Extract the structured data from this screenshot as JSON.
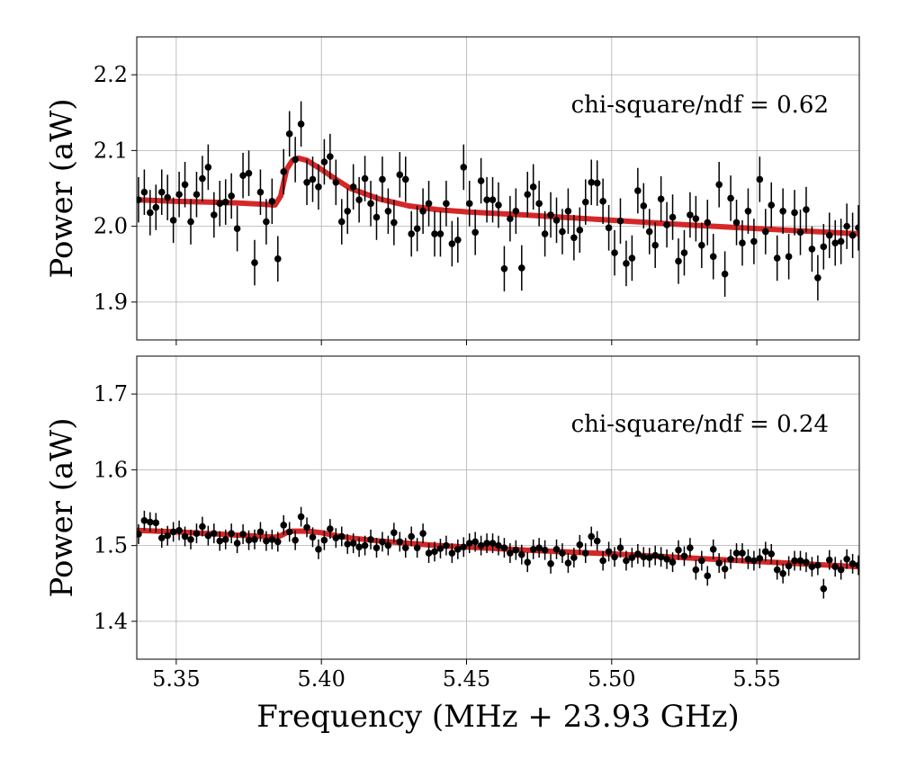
{
  "chart_data": [
    {
      "type": "scatter",
      "annotation": "chi-square/ndf = 0.62",
      "ylabel": "Power (aW)",
      "x": [
        5.337,
        5.339,
        5.341,
        5.343,
        5.345,
        5.347,
        5.349,
        5.351,
        5.353,
        5.355,
        5.357,
        5.359,
        5.361,
        5.363,
        5.365,
        5.367,
        5.369,
        5.371,
        5.373,
        5.375,
        5.377,
        5.379,
        5.381,
        5.383,
        5.385,
        5.387,
        5.389,
        5.391,
        5.393,
        5.395,
        5.397,
        5.399,
        5.401,
        5.403,
        5.405,
        5.407,
        5.409,
        5.411,
        5.413,
        5.415,
        5.417,
        5.419,
        5.421,
        5.423,
        5.425,
        5.427,
        5.429,
        5.431,
        5.433,
        5.435,
        5.437,
        5.439,
        5.441,
        5.443,
        5.445,
        5.447,
        5.449,
        5.451,
        5.453,
        5.455,
        5.457,
        5.459,
        5.461,
        5.463,
        5.465,
        5.467,
        5.469,
        5.471,
        5.473,
        5.475,
        5.477,
        5.479,
        5.481,
        5.483,
        5.485,
        5.487,
        5.489,
        5.491,
        5.493,
        5.495,
        5.497,
        5.499,
        5.501,
        5.503,
        5.505,
        5.507,
        5.509,
        5.511,
        5.513,
        5.515,
        5.517,
        5.519,
        5.521,
        5.523,
        5.525,
        5.527,
        5.529,
        5.531,
        5.533,
        5.535,
        5.537,
        5.539,
        5.541,
        5.543,
        5.545,
        5.547,
        5.549,
        5.551,
        5.553,
        5.555,
        5.557,
        5.559,
        5.561,
        5.563,
        5.565,
        5.567,
        5.569,
        5.571,
        5.573,
        5.575,
        5.577,
        5.579,
        5.581,
        5.583,
        5.585
      ],
      "values": [
        2.035,
        2.045,
        2.018,
        2.025,
        2.045,
        2.038,
        2.008,
        2.042,
        2.055,
        2.006,
        2.042,
        2.063,
        2.078,
        2.015,
        2.03,
        2.032,
        2.04,
        1.997,
        2.067,
        2.07,
        1.952,
        2.045,
        2.006,
        2.033,
        1.957,
        2.072,
        2.122,
        2.088,
        2.135,
        2.058,
        2.062,
        2.052,
        2.085,
        2.092,
        2.058,
        2.006,
        2.02,
        2.052,
        2.035,
        2.063,
        2.03,
        2.012,
        2.062,
        2.02,
        2.005,
        2.068,
        2.062,
        1.99,
        1.997,
        2.02,
        2.03,
        1.99,
        1.99,
        2.03,
        1.977,
        1.982,
        2.078,
        2.03,
        1.992,
        2.06,
        2.035,
        2.035,
        2.028,
        1.944,
        2.01,
        2.02,
        1.945,
        2.042,
        2.052,
        2.03,
        1.99,
        2.015,
        2.008,
        1.993,
        2.02,
        1.985,
        1.995,
        2.032,
        2.058,
        2.057,
        2.033,
        1.998,
        1.965,
        2.007,
        1.951,
        1.958,
        2.047,
        2.027,
        1.993,
        1.975,
        2.036,
        2.002,
        2.012,
        1.954,
        1.965,
        2.015,
        2.01,
        1.975,
        2.005,
        1.96,
        2.055,
        1.937,
        2.037,
        2.005,
        1.978,
        2.02,
        1.98,
        2.062,
        1.993,
        2.028,
        1.958,
        2.02,
        1.96,
        2.018,
        1.992,
        2.022,
        1.97,
        1.932,
        1.973,
        1.988,
        1.978,
        1.98,
        2.0,
        1.988,
        1.998
      ],
      "yerr": 0.03,
      "color": "#000000",
      "fit": {
        "color": "#d62728",
        "x": [
          5.3364,
          5.35,
          5.36,
          5.37,
          5.38,
          5.384,
          5.386,
          5.388,
          5.39,
          5.392,
          5.395,
          5.4,
          5.405,
          5.41,
          5.42,
          5.43,
          5.44,
          5.45,
          5.47,
          5.5,
          5.53,
          5.56,
          5.5853
        ],
        "values": [
          2.035,
          2.033,
          2.032,
          2.031,
          2.029,
          2.028,
          2.04,
          2.075,
          2.087,
          2.09,
          2.087,
          2.075,
          2.062,
          2.05,
          2.036,
          2.027,
          2.022,
          2.019,
          2.015,
          2.008,
          2.001,
          1.995,
          1.99
        ]
      },
      "xlim": [
        5.3364,
        5.5853
      ],
      "xticks": [
        5.35,
        {
          "value": 5.4,
          "label": "5.40"
        },
        5.45,
        {
          "value": 5.5,
          "label": "5.50"
        },
        5.55
      ],
      "xtick_labels": false,
      "ylim": [
        1.85,
        2.25
      ],
      "yticks": [
        1.9,
        {
          "value": 2.0,
          "label": "2.0"
        },
        2.1,
        2.2
      ],
      "grid": true
    },
    {
      "type": "scatter",
      "annotation": "chi-square/ndf = 0.24",
      "ylabel": "Power (aW)",
      "xlabel": "Frequency (MHz + 23.93 GHz)",
      "x": [
        5.337,
        5.339,
        5.341,
        5.343,
        5.345,
        5.347,
        5.349,
        5.351,
        5.353,
        5.355,
        5.357,
        5.359,
        5.361,
        5.363,
        5.365,
        5.367,
        5.369,
        5.371,
        5.373,
        5.375,
        5.377,
        5.379,
        5.381,
        5.383,
        5.385,
        5.387,
        5.389,
        5.391,
        5.393,
        5.395,
        5.397,
        5.399,
        5.401,
        5.403,
        5.405,
        5.407,
        5.409,
        5.411,
        5.413,
        5.415,
        5.417,
        5.419,
        5.421,
        5.423,
        5.425,
        5.427,
        5.429,
        5.431,
        5.433,
        5.435,
        5.437,
        5.439,
        5.441,
        5.443,
        5.445,
        5.447,
        5.449,
        5.451,
        5.453,
        5.455,
        5.457,
        5.459,
        5.461,
        5.463,
        5.465,
        5.467,
        5.469,
        5.471,
        5.473,
        5.475,
        5.477,
        5.479,
        5.481,
        5.483,
        5.485,
        5.487,
        5.489,
        5.491,
        5.493,
        5.495,
        5.497,
        5.499,
        5.501,
        5.503,
        5.505,
        5.507,
        5.509,
        5.511,
        5.513,
        5.515,
        5.517,
        5.519,
        5.521,
        5.523,
        5.525,
        5.527,
        5.529,
        5.531,
        5.533,
        5.535,
        5.537,
        5.539,
        5.541,
        5.543,
        5.545,
        5.547,
        5.549,
        5.551,
        5.553,
        5.555,
        5.557,
        5.559,
        5.561,
        5.563,
        5.565,
        5.567,
        5.569,
        5.571,
        5.573,
        5.575,
        5.577,
        5.579,
        5.581,
        5.583,
        5.585
      ],
      "values": [
        1.515,
        1.533,
        1.531,
        1.53,
        1.51,
        1.513,
        1.518,
        1.52,
        1.512,
        1.508,
        1.516,
        1.525,
        1.513,
        1.516,
        1.506,
        1.508,
        1.516,
        1.503,
        1.515,
        1.507,
        1.508,
        1.518,
        1.506,
        1.508,
        1.505,
        1.527,
        1.518,
        1.507,
        1.538,
        1.524,
        1.511,
        1.495,
        1.507,
        1.522,
        1.51,
        1.512,
        1.502,
        1.503,
        1.498,
        1.5,
        1.508,
        1.497,
        1.505,
        1.5,
        1.517,
        1.505,
        1.497,
        1.512,
        1.497,
        1.516,
        1.49,
        1.492,
        1.496,
        1.5,
        1.49,
        1.495,
        1.498,
        1.503,
        1.505,
        1.5,
        1.503,
        1.503,
        1.5,
        1.497,
        1.49,
        1.494,
        1.488,
        1.478,
        1.495,
        1.497,
        1.494,
        1.476,
        1.495,
        1.49,
        1.477,
        1.484,
        1.501,
        1.49,
        1.512,
        1.506,
        1.48,
        1.492,
        1.485,
        1.497,
        1.48,
        1.484,
        1.489,
        1.485,
        1.484,
        1.487,
        1.485,
        1.482,
        1.478,
        1.494,
        1.486,
        1.497,
        1.468,
        1.48,
        1.46,
        1.495,
        1.477,
        1.469,
        1.482,
        1.49,
        1.49,
        1.482,
        1.48,
        1.483,
        1.492,
        1.489,
        1.468,
        1.463,
        1.473,
        1.48,
        1.48,
        1.478,
        1.472,
        1.474,
        1.443,
        1.481,
        1.472,
        1.468,
        1.482,
        1.476,
        1.474
      ],
      "yerr": 0.013,
      "color": "#000000",
      "fit": {
        "color": "#d62728",
        "x": [
          5.3364,
          5.35,
          5.36,
          5.37,
          5.38,
          5.384,
          5.386,
          5.388,
          5.39,
          5.392,
          5.395,
          5.4,
          5.405,
          5.41,
          5.42,
          5.43,
          5.44,
          5.45,
          5.47,
          5.5,
          5.53,
          5.56,
          5.5853
        ],
        "values": [
          1.52,
          1.518,
          1.516,
          1.514,
          1.512,
          1.511,
          1.513,
          1.517,
          1.519,
          1.519,
          1.519,
          1.517,
          1.513,
          1.51,
          1.506,
          1.503,
          1.5,
          1.498,
          1.494,
          1.489,
          1.483,
          1.477,
          1.472
        ]
      },
      "xlim": [
        5.3364,
        5.5853
      ],
      "xticks": [
        5.35,
        {
          "value": 5.4,
          "label": "5.40"
        },
        5.45,
        {
          "value": 5.5,
          "label": "5.50"
        },
        5.55
      ],
      "xtick_labels": true,
      "ylim": [
        1.35,
        1.75
      ],
      "yticks": [
        1.4,
        1.5,
        1.6,
        1.7
      ],
      "grid": true
    }
  ]
}
